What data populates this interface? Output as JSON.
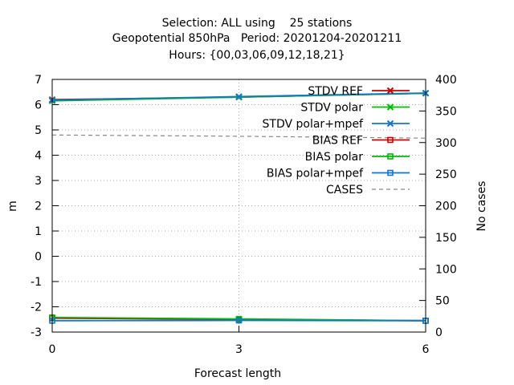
{
  "chart_data": {
    "type": "line",
    "title_lines": [
      "Selection: ALL using    25 stations",
      "Geopotential 850hPa   Period: 20201204-20201211",
      "Hours: {00,03,06,09,12,18,21}"
    ],
    "xlabel": "Forecast length",
    "ylabel": "m",
    "y2label": "No cases",
    "x": [
      0,
      3,
      6
    ],
    "xlim": [
      0,
      6
    ],
    "xticks": [
      "0",
      "3",
      "6"
    ],
    "ylim": [
      -3,
      7
    ],
    "yticks": [
      "-3",
      "-2",
      "-1",
      "0",
      "1",
      "2",
      "3",
      "4",
      "5",
      "6",
      "7"
    ],
    "y2lim": [
      0,
      400
    ],
    "y2ticks": [
      "0",
      "50",
      "100",
      "150",
      "200",
      "250",
      "300",
      "350",
      "400"
    ],
    "grid": true,
    "legend_position": "top-right",
    "series": [
      {
        "name": "STDV REF",
        "values": [
          6.2,
          6.3,
          6.45
        ],
        "color": "#cc0000",
        "marker": "x",
        "axis": "y1"
      },
      {
        "name": "STDV polar",
        "values": [
          6.15,
          6.3,
          6.45
        ],
        "color": "#00bb00",
        "marker": "x",
        "axis": "y1"
      },
      {
        "name": "STDV polar+mpef",
        "values": [
          6.18,
          6.32,
          6.46
        ],
        "color": "#1177cc",
        "marker": "x",
        "axis": "y1"
      },
      {
        "name": "BIAS REF",
        "values": [
          -2.45,
          -2.5,
          -2.55
        ],
        "color": "#cc0000",
        "marker": "square",
        "axis": "y1"
      },
      {
        "name": "BIAS polar",
        "values": [
          -2.42,
          -2.48,
          -2.55
        ],
        "color": "#00bb00",
        "marker": "square",
        "axis": "y1"
      },
      {
        "name": "BIAS polar+mpef",
        "values": [
          -2.55,
          -2.54,
          -2.55
        ],
        "color": "#1177cc",
        "marker": "square",
        "axis": "y1"
      },
      {
        "name": "CASES",
        "values": [
          312,
          310,
          307
        ],
        "color": "#888888",
        "marker": "none",
        "dashed": true,
        "axis": "y2"
      }
    ]
  }
}
